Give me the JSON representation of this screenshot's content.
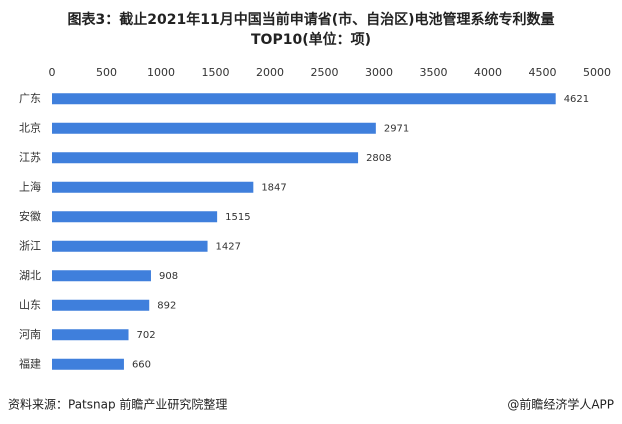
{
  "chart_data": {
    "type": "bar",
    "orientation": "horizontal",
    "title": [
      "图表3：截止2021年11月中国当前申请省(市、自治区)电池管理系统专利数量",
      "TOP10(单位：项)"
    ],
    "categories": [
      "广东",
      "北京",
      "江苏",
      "上海",
      "安徽",
      "浙江",
      "湖北",
      "山东",
      "河南",
      "福建"
    ],
    "values": [
      4621,
      2971,
      2808,
      1847,
      1515,
      1427,
      908,
      892,
      702,
      660
    ],
    "color": "#3f7fdc",
    "xlim": [
      0,
      5000
    ],
    "xticks": [
      0,
      500,
      1000,
      1500,
      2000,
      2500,
      3000,
      3500,
      4000,
      4500,
      5000
    ],
    "grid": false,
    "source": "资料来源：Patsnap 前瞻产业研究院整理",
    "credit": "@前瞻经济学人APP"
  }
}
